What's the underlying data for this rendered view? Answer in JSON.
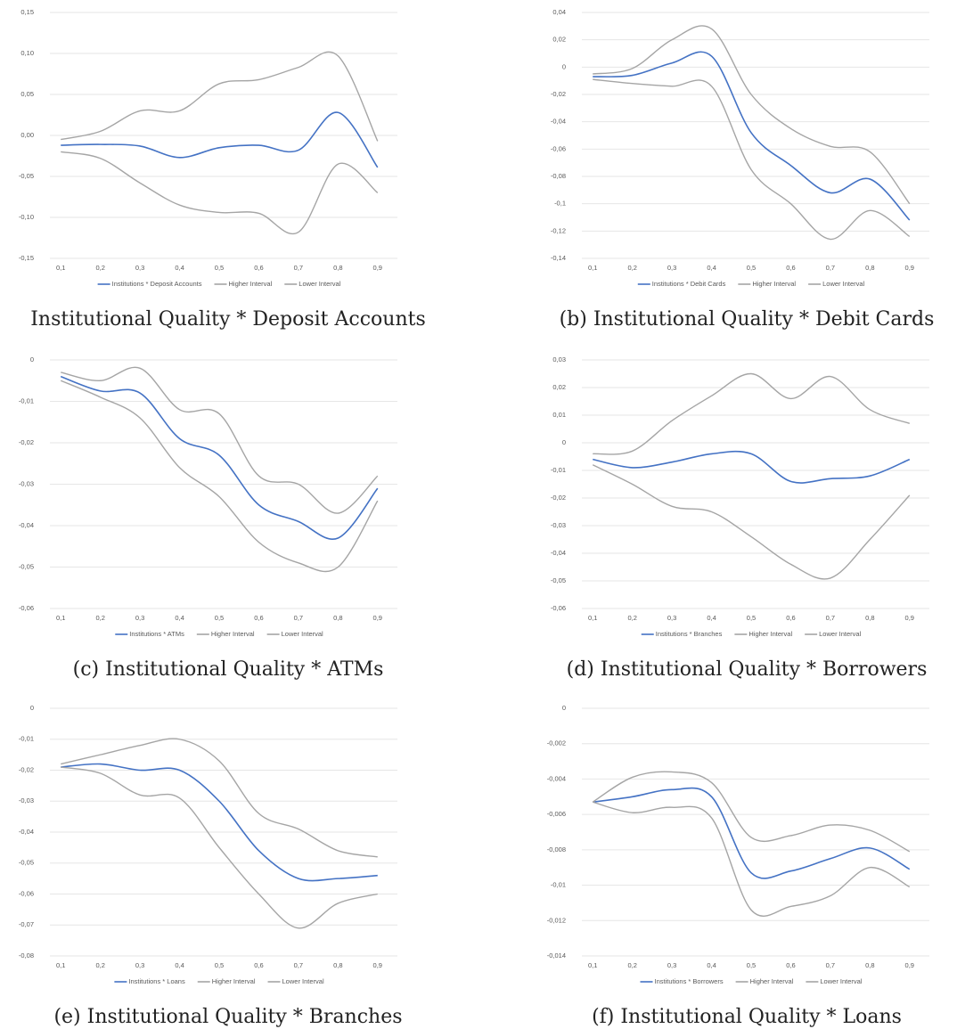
{
  "chart_data": [
    {
      "type": "line",
      "caption": "Institutional Quality * Deposit Accounts",
      "categories": [
        "0,1",
        "0,2",
        "0,3",
        "0,4",
        "0,5",
        "0,6",
        "0,7",
        "0,8",
        "0,9"
      ],
      "ylim": [
        -0.15,
        0.15
      ],
      "yticks": [
        {
          "value": 0.15,
          "label": "0,15"
        },
        {
          "value": 0.1,
          "label": "0,10"
        },
        {
          "value": 0.05,
          "label": "0,05"
        },
        {
          "value": 0,
          "label": "0,00"
        },
        {
          "value": -0.05,
          "label": "-0,05"
        },
        {
          "value": -0.1,
          "label": "-0,10"
        },
        {
          "value": -0.15,
          "label": "-0,15"
        }
      ],
      "grid": true,
      "series": [
        {
          "name": "Institutions * Deposit Accounts",
          "color": "#4472c4",
          "values": [
            -0.012,
            -0.011,
            -0.013,
            -0.027,
            -0.015,
            -0.012,
            -0.018,
            0.028,
            -0.039
          ]
        },
        {
          "name": "Higher Interval",
          "color": "#a5a5a5",
          "values": [
            -0.005,
            0.005,
            0.03,
            0.03,
            0.063,
            0.068,
            0.083,
            0.097,
            -0.007
          ]
        },
        {
          "name": "Lower Interval",
          "color": "#a5a5a5",
          "values": [
            -0.02,
            -0.028,
            -0.058,
            -0.085,
            -0.094,
            -0.095,
            -0.118,
            -0.035,
            -0.07
          ]
        }
      ]
    },
    {
      "type": "line",
      "caption": "(b) Institutional Quality * Debit Cards",
      "categories": [
        "0,1",
        "0,2",
        "0,3",
        "0,4",
        "0,5",
        "0,6",
        "0,7",
        "0,8",
        "0,9"
      ],
      "ylim": [
        -0.14,
        0.04
      ],
      "yticks": [
        {
          "value": 0.04,
          "label": "0,04"
        },
        {
          "value": 0.02,
          "label": "0,02"
        },
        0,
        {
          "value": -0.02,
          "label": "-0,02"
        },
        {
          "value": -0.04,
          "label": "-0,04"
        },
        {
          "value": -0.06,
          "label": "-0,06"
        },
        {
          "value": -0.08,
          "label": "-0,08"
        },
        {
          "value": -0.1,
          "label": "-0,1"
        },
        {
          "value": -0.12,
          "label": "-0,12"
        },
        {
          "value": -0.14,
          "label": "-0,14"
        }
      ],
      "grid": true,
      "series": [
        {
          "name": "Institutions * Debit Cards",
          "color": "#4472c4",
          "values": [
            -0.007,
            -0.006,
            0.003,
            0.008,
            -0.048,
            -0.072,
            -0.092,
            -0.082,
            -0.112
          ]
        },
        {
          "name": "Higher Interval",
          "color": "#a5a5a5",
          "values": [
            -0.005,
            -0.001,
            0.02,
            0.028,
            -0.02,
            -0.045,
            -0.058,
            -0.062,
            -0.1
          ]
        },
        {
          "name": "Lower Interval",
          "color": "#a5a5a5",
          "values": [
            -0.009,
            -0.012,
            -0.014,
            -0.014,
            -0.075,
            -0.1,
            -0.126,
            -0.105,
            -0.124
          ]
        }
      ]
    },
    {
      "type": "line",
      "caption": "(c) Institutional Quality * ATMs",
      "categories": [
        "0,1",
        "0,2",
        "0,3",
        "0,4",
        "0,5",
        "0,6",
        "0,7",
        "0,8",
        "0,9"
      ],
      "ylim": [
        -0.06,
        0
      ],
      "yticks": [
        0,
        {
          "value": -0.01,
          "label": "-0,01"
        },
        {
          "value": -0.02,
          "label": "-0,02"
        },
        {
          "value": -0.03,
          "label": "-0,03"
        },
        {
          "value": -0.04,
          "label": "-0,04"
        },
        {
          "value": -0.05,
          "label": "-0,05"
        },
        {
          "value": -0.06,
          "label": "-0,06"
        }
      ],
      "grid": true,
      "series": [
        {
          "name": "Institutions * ATMs",
          "color": "#4472c4",
          "values": [
            -0.004,
            -0.0075,
            -0.008,
            -0.019,
            -0.023,
            -0.035,
            -0.039,
            -0.043,
            -0.031
          ]
        },
        {
          "name": "Higher Interval",
          "color": "#a5a5a5",
          "values": [
            -0.003,
            -0.005,
            -0.002,
            -0.012,
            -0.013,
            -0.028,
            -0.03,
            -0.037,
            -0.028
          ]
        },
        {
          "name": "Lower Interval",
          "color": "#a5a5a5",
          "values": [
            -0.005,
            -0.009,
            -0.014,
            -0.026,
            -0.033,
            -0.044,
            -0.049,
            -0.05,
            -0.034
          ]
        }
      ]
    },
    {
      "type": "line",
      "caption": "(d) Institutional Quality * Borrowers",
      "categories": [
        "0,1",
        "0,2",
        "0,3",
        "0,4",
        "0,5",
        "0,6",
        "0,7",
        "0,8",
        "0,9"
      ],
      "ylim": [
        -0.06,
        0.03
      ],
      "yticks": [
        {
          "value": 0.03,
          "label": "0,03"
        },
        {
          "value": 0.02,
          "label": "0,02"
        },
        {
          "value": 0.01,
          "label": "0,01"
        },
        0,
        {
          "value": -0.01,
          "label": "-0,01"
        },
        {
          "value": -0.02,
          "label": "-0,02"
        },
        {
          "value": -0.03,
          "label": "-0,03"
        },
        {
          "value": -0.04,
          "label": "-0,04"
        },
        {
          "value": -0.05,
          "label": "-0,05"
        },
        {
          "value": -0.06,
          "label": "-0,06"
        }
      ],
      "grid": true,
      "series": [
        {
          "name": "Institutions * Branches",
          "color": "#4472c4",
          "values": [
            -0.006,
            -0.009,
            -0.007,
            -0.004,
            -0.004,
            -0.014,
            -0.013,
            -0.012,
            -0.006
          ]
        },
        {
          "name": "Higher Interval",
          "color": "#a5a5a5",
          "values": [
            -0.004,
            -0.003,
            0.008,
            0.017,
            0.025,
            0.016,
            0.024,
            0.012,
            0.007
          ]
        },
        {
          "name": "Lower Interval",
          "color": "#a5a5a5",
          "values": [
            -0.008,
            -0.015,
            -0.023,
            -0.025,
            -0.034,
            -0.044,
            -0.049,
            -0.035,
            -0.019
          ]
        }
      ]
    },
    {
      "type": "line",
      "caption": "(e) Institutional Quality * Branches",
      "categories": [
        "0,1",
        "0,2",
        "0,3",
        "0,4",
        "0,5",
        "0,6",
        "0,7",
        "0,8",
        "0,9"
      ],
      "ylim": [
        -0.08,
        0
      ],
      "yticks": [
        0,
        {
          "value": -0.01,
          "label": "-0,01"
        },
        {
          "value": -0.02,
          "label": "-0,02"
        },
        {
          "value": -0.03,
          "label": "-0,03"
        },
        {
          "value": -0.04,
          "label": "-0,04"
        },
        {
          "value": -0.05,
          "label": "-0,05"
        },
        {
          "value": -0.06,
          "label": "-0,06"
        },
        {
          "value": -0.07,
          "label": "-0,07"
        },
        {
          "value": -0.08,
          "label": "-0,08"
        }
      ],
      "grid": true,
      "series": [
        {
          "name": "Institutions * Loans",
          "color": "#4472c4",
          "values": [
            -0.019,
            -0.018,
            -0.02,
            -0.02,
            -0.03,
            -0.046,
            -0.055,
            -0.055,
            -0.054
          ]
        },
        {
          "name": "Higher Interval",
          "color": "#a5a5a5",
          "values": [
            -0.018,
            -0.015,
            -0.012,
            -0.01,
            -0.017,
            -0.034,
            -0.039,
            -0.046,
            -0.048
          ]
        },
        {
          "name": "Lower Interval",
          "color": "#a5a5a5",
          "values": [
            -0.019,
            -0.021,
            -0.028,
            -0.029,
            -0.045,
            -0.06,
            -0.071,
            -0.063,
            -0.06
          ]
        }
      ]
    },
    {
      "type": "line",
      "caption": "(f) Institutional Quality * Loans",
      "categories": [
        "0,1",
        "0,2",
        "0,3",
        "0,4",
        "0,5",
        "0,6",
        "0,7",
        "0,8",
        "0,9"
      ],
      "ylim": [
        -0.014,
        0
      ],
      "yticks": [
        0,
        {
          "value": -0.002,
          "label": "-0,002"
        },
        {
          "value": -0.004,
          "label": "-0,004"
        },
        {
          "value": -0.006,
          "label": "-0,006"
        },
        {
          "value": -0.008,
          "label": "-0,008"
        },
        {
          "value": -0.01,
          "label": "-0,01"
        },
        {
          "value": -0.012,
          "label": "-0,012"
        },
        {
          "value": -0.014,
          "label": "-0,014"
        }
      ],
      "grid": true,
      "series": [
        {
          "name": "Institutions * Borrowers",
          "color": "#4472c4",
          "values": [
            -0.0053,
            -0.005,
            -0.0046,
            -0.005,
            -0.0093,
            -0.0092,
            -0.0085,
            -0.0079,
            -0.0091
          ]
        },
        {
          "name": "Higher Interval",
          "color": "#a5a5a5",
          "values": [
            -0.0053,
            -0.0039,
            -0.0036,
            -0.0042,
            -0.0073,
            -0.0072,
            -0.0066,
            -0.0069,
            -0.0081
          ]
        },
        {
          "name": "Lower Interval",
          "color": "#a5a5a5",
          "values": [
            -0.0053,
            -0.0059,
            -0.0056,
            -0.0062,
            -0.0114,
            -0.0112,
            -0.0106,
            -0.009,
            -0.0101
          ]
        }
      ]
    }
  ]
}
